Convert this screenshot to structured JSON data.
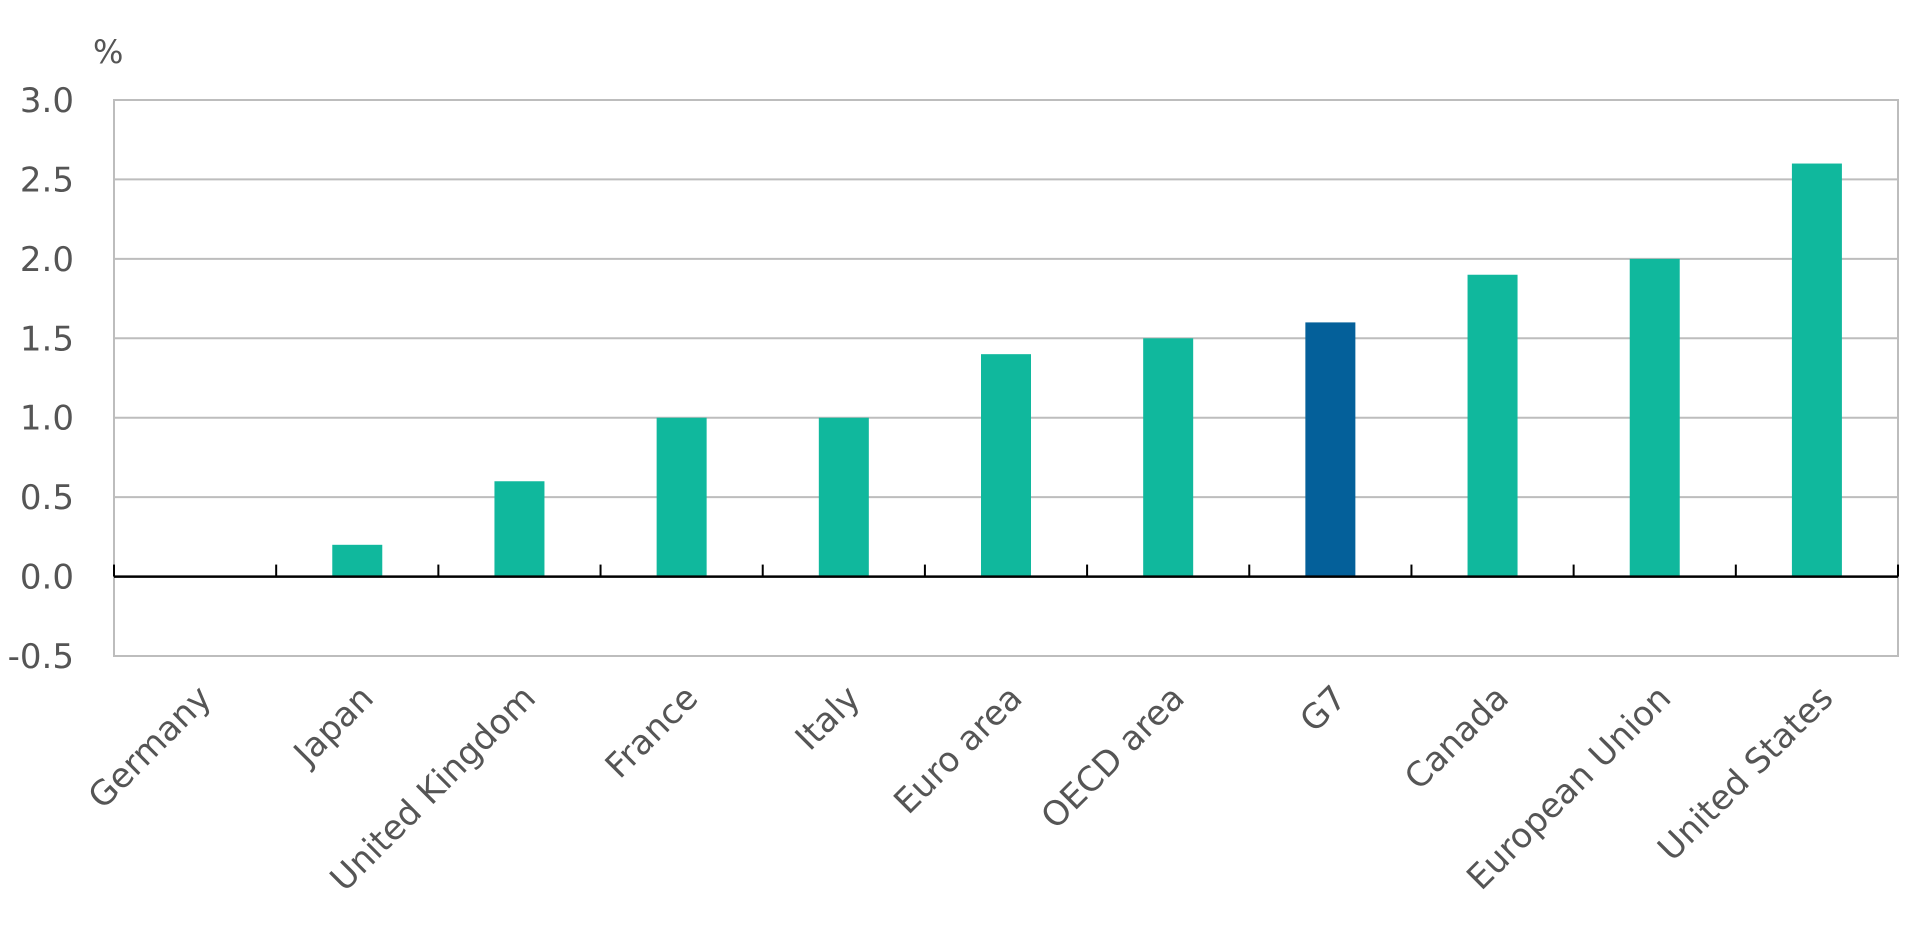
{
  "chart_data": {
    "type": "bar",
    "title": "",
    "xlabel": "",
    "ylabel": "%",
    "ylim": [
      -0.5,
      3.0
    ],
    "yticks": [
      "3.0",
      "2.5",
      "2.0",
      "1.5",
      "1.0",
      "0.5",
      "0.0",
      "-0.5"
    ],
    "categories": [
      "Germany",
      "Japan",
      "United Kingdom",
      "France",
      "Italy",
      "Euro area",
      "OECD area",
      "G7",
      "Canada",
      "European Union",
      "United States"
    ],
    "values": [
      0.0,
      0.2,
      0.6,
      1.0,
      1.0,
      1.4,
      1.5,
      1.6,
      1.9,
      2.0,
      2.6
    ],
    "highlight_category": "G7",
    "grid": true,
    "legend": "none",
    "colors": {
      "bar": "#10b89d",
      "highlight": "#04609a",
      "grid": "#bdbdbd",
      "zero_axis": "#000000",
      "text": "#555555"
    }
  }
}
